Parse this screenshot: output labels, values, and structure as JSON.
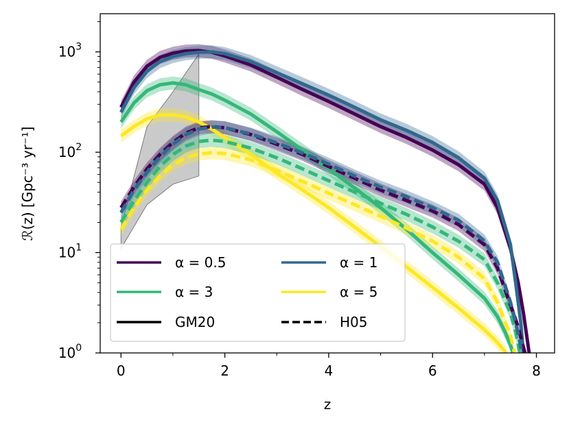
{
  "chart_data": {
    "type": "line",
    "xlabel": "z",
    "ylabel": "ℛ(z) [Gpc⁻³ yr⁻¹]",
    "xlim": [
      -0.4,
      8.35
    ],
    "ylim": [
      1,
      2400
    ],
    "yscale": "log",
    "grid": false,
    "legend_position": "lower-left",
    "x_ticks": [
      {
        "value": 0,
        "label": "0"
      },
      {
        "value": 2,
        "label": "2"
      },
      {
        "value": 4,
        "label": "4"
      },
      {
        "value": 6,
        "label": "6"
      },
      {
        "value": 8,
        "label": "8"
      }
    ],
    "y_ticks": [
      {
        "value": 1,
        "base": "10",
        "exp": "0"
      },
      {
        "value": 10,
        "base": "10",
        "exp": "1"
      },
      {
        "value": 100,
        "base": "10",
        "exp": "2"
      },
      {
        "value": 1000,
        "base": "10",
        "exp": "3"
      }
    ],
    "legend": [
      {
        "label": "α = 0.5",
        "color": "#440154",
        "dash": "solid"
      },
      {
        "label": "α = 1",
        "color": "#31688e",
        "dash": "solid"
      },
      {
        "label": "α = 3",
        "color": "#35b779",
        "dash": "solid"
      },
      {
        "label": "α = 5",
        "color": "#fde725",
        "dash": "solid"
      },
      {
        "label": "GM20",
        "color": "#000000",
        "dash": "solid"
      },
      {
        "label": "H05",
        "color": "#000000",
        "dash": "dashed"
      }
    ],
    "reference_band": {
      "color": "#bdbdbd",
      "x": [
        0,
        0.5,
        1.0,
        1.5
      ],
      "lower": [
        11,
        30,
        48,
        58
      ],
      "upper": [
        18,
        180,
        400,
        950
      ]
    },
    "series": [
      {
        "alpha": "0.5",
        "model": "GM20",
        "color": "#440154",
        "dash": "solid",
        "x": [
          0,
          0.25,
          0.5,
          0.75,
          1.0,
          1.25,
          1.5,
          1.75,
          2.0,
          2.5,
          3.0,
          3.5,
          4.0,
          4.5,
          5.0,
          5.5,
          6.0,
          6.5,
          7.0,
          7.25,
          7.5,
          7.65,
          7.75,
          7.82,
          7.86
        ],
        "y": [
          280,
          500,
          720,
          880,
          970,
          1020,
          1030,
          990,
          910,
          740,
          560,
          420,
          320,
          240,
          180,
          140,
          105,
          75,
          48,
          28,
          11,
          5,
          2.5,
          1.4,
          1
        ]
      },
      {
        "alpha": "1",
        "model": "GM20",
        "color": "#31688e",
        "dash": "solid",
        "x": [
          0,
          0.25,
          0.5,
          0.75,
          1.0,
          1.25,
          1.5,
          1.75,
          2.0,
          2.5,
          3.0,
          3.5,
          4.0,
          4.5,
          5.0,
          5.5,
          6.0,
          6.5,
          7.0,
          7.25,
          7.5,
          7.6,
          7.7,
          7.75
        ],
        "y": [
          250,
          440,
          640,
          800,
          900,
          960,
          990,
          1000,
          960,
          800,
          620,
          480,
          370,
          280,
          210,
          165,
          125,
          88,
          55,
          33,
          12,
          5,
          2,
          1
        ]
      },
      {
        "alpha": "3",
        "model": "GM20",
        "color": "#35b779",
        "dash": "solid",
        "x": [
          0,
          0.25,
          0.5,
          0.75,
          1.0,
          1.25,
          1.5,
          1.75,
          2.0,
          2.5,
          3.0,
          3.5,
          4.0,
          4.5,
          5.0,
          5.5,
          6.0,
          6.5,
          7.0,
          7.25,
          7.4,
          7.5,
          7.55
        ],
        "y": [
          200,
          310,
          410,
          470,
          490,
          470,
          420,
          380,
          330,
          240,
          160,
          105,
          68,
          44,
          28,
          17,
          10,
          6,
          3.5,
          2.3,
          1.6,
          1.2,
          1
        ]
      },
      {
        "alpha": "5",
        "model": "GM20",
        "color": "#fde725",
        "dash": "solid",
        "x": [
          0,
          0.25,
          0.5,
          0.75,
          1.0,
          1.25,
          1.5,
          1.75,
          2.0,
          2.5,
          3.0,
          3.5,
          4.0,
          4.5,
          5.0,
          5.5,
          6.0,
          6.5,
          7.0,
          7.2,
          7.35,
          7.42
        ],
        "y": [
          145,
          180,
          215,
          235,
          235,
          225,
          200,
          170,
          140,
          95,
          62,
          42,
          28,
          18,
          11.5,
          7.2,
          4.5,
          2.8,
          1.7,
          1.35,
          1.1,
          1
        ]
      },
      {
        "alpha": "0.5",
        "model": "H05",
        "color": "#440154",
        "dash": "dashed",
        "x": [
          0,
          0.25,
          0.5,
          0.75,
          1.0,
          1.25,
          1.5,
          1.75,
          2.0,
          2.5,
          3.0,
          3.5,
          4.0,
          4.5,
          5.0,
          5.5,
          6.0,
          6.5,
          7.0,
          7.25,
          7.5,
          7.65,
          7.72,
          7.78
        ],
        "y": [
          28,
          45,
          68,
          95,
          125,
          155,
          175,
          180,
          175,
          150,
          120,
          95,
          72,
          55,
          42,
          33,
          26,
          19,
          12,
          7,
          3,
          1.8,
          1.3,
          1
        ]
      },
      {
        "alpha": "1",
        "model": "H05",
        "color": "#31688e",
        "dash": "dashed",
        "x": [
          0,
          0.25,
          0.5,
          0.75,
          1.0,
          1.25,
          1.5,
          1.75,
          2.0,
          2.5,
          3.0,
          3.5,
          4.0,
          4.5,
          5.0,
          5.5,
          6.0,
          6.5,
          7.0,
          7.25,
          7.5,
          7.6,
          7.68,
          7.72
        ],
        "y": [
          25,
          42,
          63,
          90,
          120,
          150,
          170,
          178,
          176,
          152,
          124,
          98,
          76,
          58,
          45,
          36,
          28,
          21,
          13,
          8,
          3.2,
          2,
          1.3,
          1
        ]
      },
      {
        "alpha": "3",
        "model": "H05",
        "color": "#35b779",
        "dash": "dashed",
        "x": [
          0,
          0.25,
          0.5,
          0.75,
          1.0,
          1.25,
          1.5,
          1.75,
          2.0,
          2.5,
          3.0,
          3.5,
          4.0,
          4.5,
          5.0,
          5.5,
          6.0,
          6.5,
          7.0,
          7.25,
          7.5,
          7.6,
          7.68
        ],
        "y": [
          20,
          33,
          50,
          72,
          95,
          115,
          128,
          132,
          128,
          110,
          88,
          68,
          52,
          40,
          31,
          24,
          18,
          13,
          8.5,
          5,
          2.5,
          1.6,
          1
        ]
      },
      {
        "alpha": "5",
        "model": "H05",
        "color": "#fde725",
        "dash": "dashed",
        "x": [
          0,
          0.25,
          0.5,
          0.75,
          1.0,
          1.25,
          1.5,
          1.75,
          2.0,
          2.5,
          3.0,
          3.5,
          4.0,
          4.5,
          5.0,
          5.5,
          6.0,
          6.5,
          7.0,
          7.25,
          7.4,
          7.5,
          7.58
        ],
        "y": [
          17,
          28,
          42,
          58,
          75,
          88,
          96,
          99,
          97,
          84,
          66,
          51,
          39,
          30,
          23,
          17.5,
          13,
          9,
          5.5,
          3.2,
          2,
          1.5,
          1
        ]
      }
    ]
  }
}
